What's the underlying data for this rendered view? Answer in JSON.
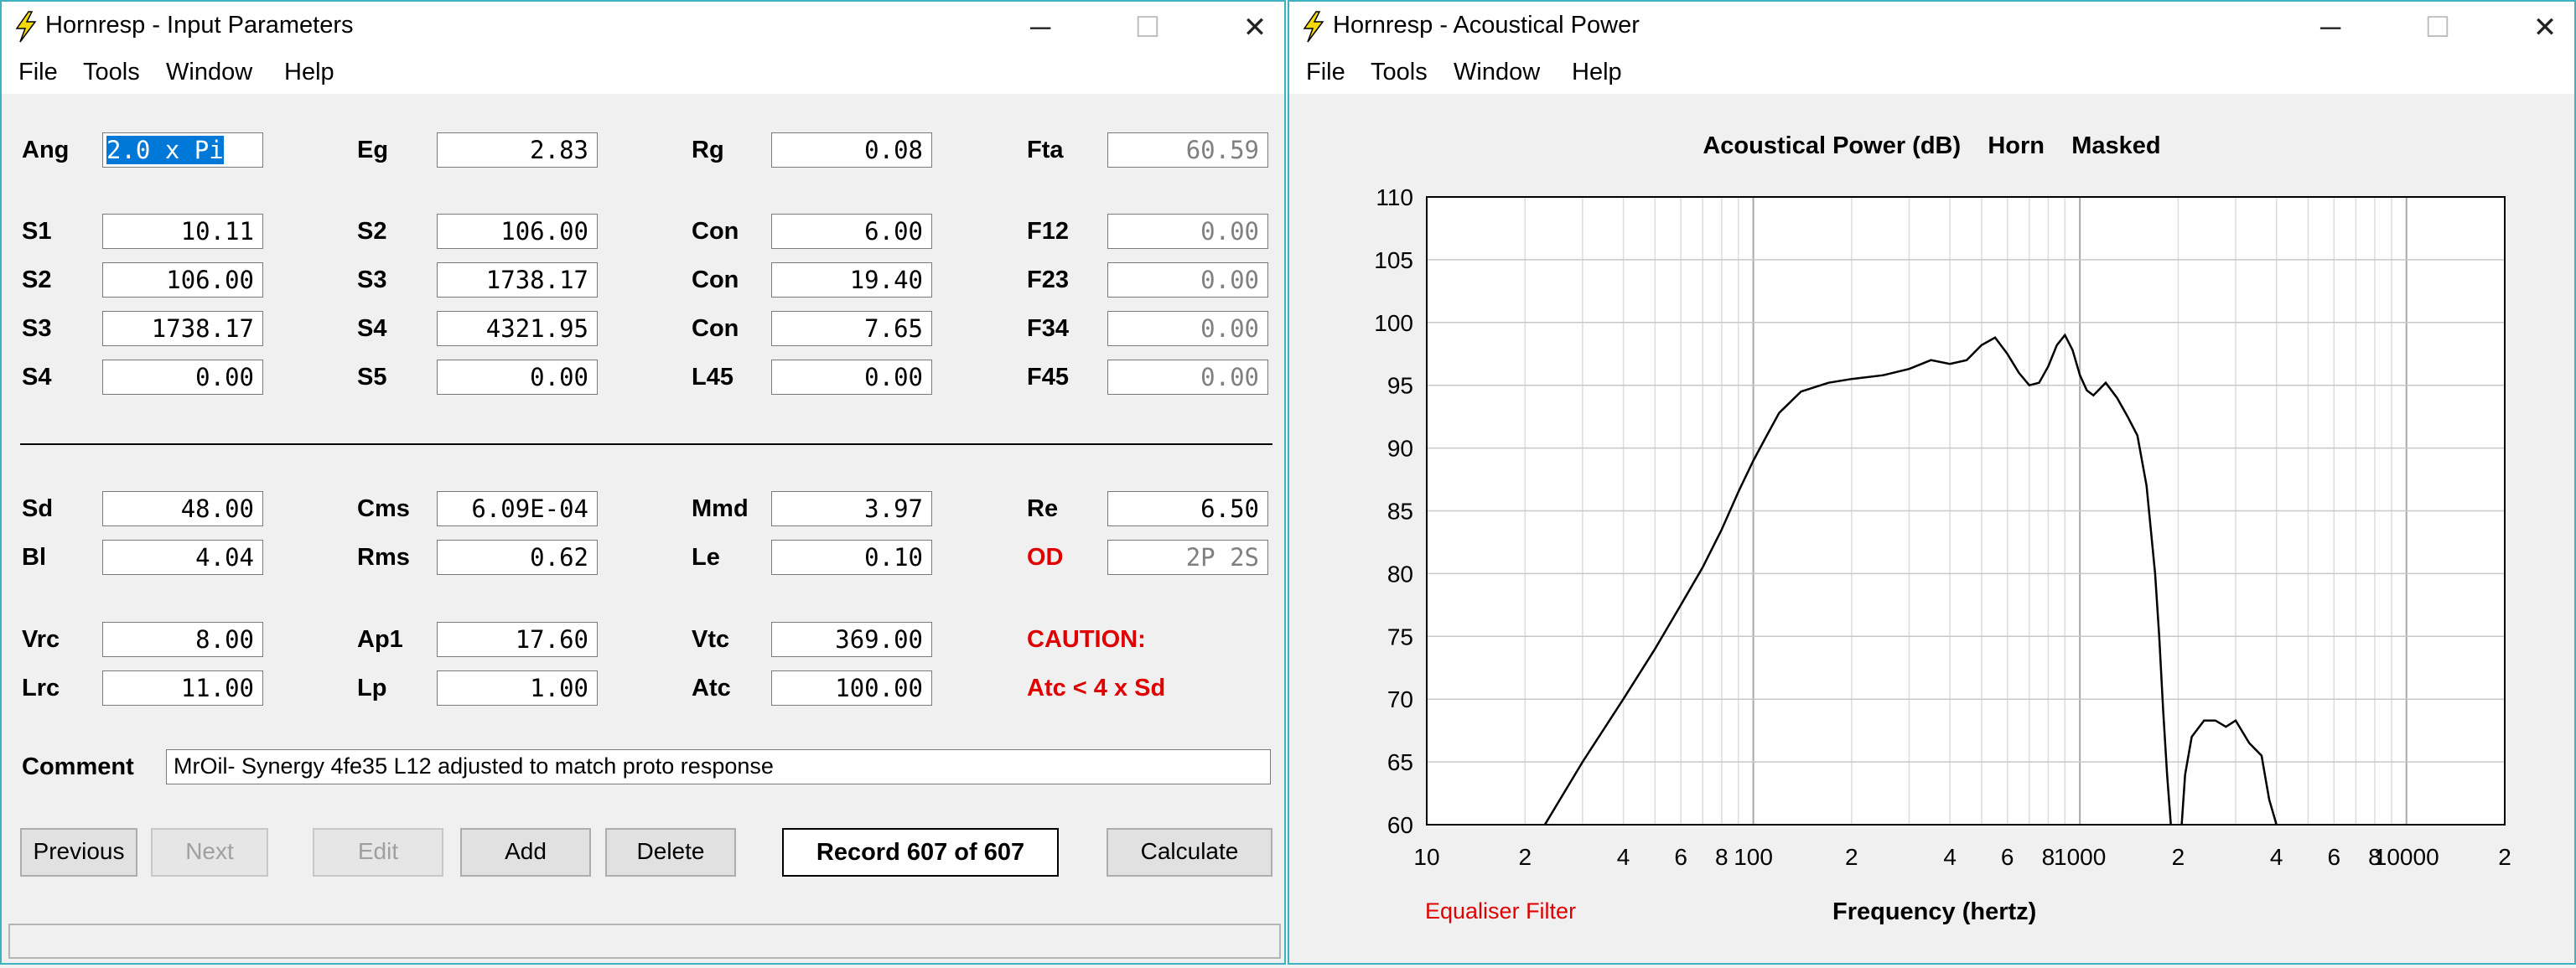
{
  "input_window": {
    "title": "Hornresp - Input Parameters",
    "menu": [
      "File",
      "Tools",
      "Window",
      "Help"
    ],
    "rows": [
      [
        [
          "Ang",
          "2.0 x Pi"
        ],
        [
          "Eg",
          "2.83"
        ],
        [
          "Rg",
          "0.08"
        ],
        [
          "Fta",
          "60.59"
        ]
      ],
      [
        [
          "S1",
          "10.11"
        ],
        [
          "S2",
          "106.00"
        ],
        [
          "Con",
          "6.00"
        ],
        [
          "F12",
          "0.00"
        ]
      ],
      [
        [
          "S2",
          "106.00"
        ],
        [
          "S3",
          "1738.17"
        ],
        [
          "Con",
          "19.40"
        ],
        [
          "F23",
          "0.00"
        ]
      ],
      [
        [
          "S3",
          "1738.17"
        ],
        [
          "S4",
          "4321.95"
        ],
        [
          "Con",
          "7.65"
        ],
        [
          "F34",
          "0.00"
        ]
      ],
      [
        [
          "S4",
          "0.00"
        ],
        [
          "S5",
          "0.00"
        ],
        [
          "L45",
          "0.00"
        ],
        [
          "F45",
          "0.00"
        ]
      ],
      [
        [
          "Sd",
          "48.00"
        ],
        [
          "Cms",
          "6.09E-04"
        ],
        [
          "Mmd",
          "3.97"
        ],
        [
          "Re",
          "6.50"
        ]
      ],
      [
        [
          "Bl",
          "4.04"
        ],
        [
          "Rms",
          "0.62"
        ],
        [
          "Le",
          "0.10"
        ],
        [
          "OD",
          "2P 2S"
        ]
      ],
      [
        [
          "Vrc",
          "8.00"
        ],
        [
          "Ap1",
          "17.60"
        ],
        [
          "Vtc",
          "369.00"
        ]
      ],
      [
        [
          "Lrc",
          "11.00"
        ],
        [
          "Lp",
          "1.00"
        ],
        [
          "Atc",
          "100.00"
        ]
      ]
    ],
    "caution": "CAUTION:",
    "caution_detail": "Atc < 4 x Sd",
    "comment_label": "Comment",
    "comment": "MrOil- Synergy 4fe35  L12 adjusted to match proto response",
    "buttons": [
      "Previous",
      "Next",
      "Edit",
      "Add",
      "Delete",
      "Calculate"
    ],
    "record": "Record 607 of 607"
  },
  "power_window": {
    "title": "Hornresp - Acoustical Power",
    "menu": [
      "File",
      "Tools",
      "Window",
      "Help"
    ],
    "equaliser_label": "Equaliser Filter"
  },
  "chart_data": {
    "type": "line",
    "title": "Acoustical Power (dB)    Horn    Masked",
    "xlabel": "Frequency (hertz)",
    "ylabel": "",
    "x_scale": "log",
    "xlim": [
      10,
      20000
    ],
    "ylim": [
      60,
      110
    ],
    "x_tick_labels": [
      "10",
      "2",
      "4",
      "6",
      "8",
      "100",
      "2",
      "4",
      "6",
      "8",
      "1000",
      "2",
      "4",
      "6",
      "8",
      "10000",
      "2"
    ],
    "y_ticks": [
      60,
      65,
      70,
      75,
      80,
      85,
      90,
      95,
      100,
      105,
      110
    ],
    "grid": true,
    "series": [
      {
        "x": [
          23,
          30,
          40,
          50,
          60,
          70,
          80,
          90,
          100,
          110,
          120,
          140,
          170,
          200,
          250,
          300,
          350,
          400,
          450,
          500,
          550,
          600,
          650,
          700,
          750,
          800,
          850,
          900,
          950,
          1000,
          1050,
          1100,
          1200,
          1300,
          1400,
          1500,
          1600,
          1700,
          1750,
          1800,
          1850,
          1900,
          1950,
          2000
        ],
        "y": [
          60,
          65,
          70,
          74,
          77.5,
          80.5,
          83.5,
          86.5,
          89,
          91,
          92.8,
          94.5,
          95.2,
          95.5,
          95.8,
          96.3,
          97,
          96.7,
          97,
          98.2,
          98.8,
          97.5,
          96,
          95,
          95.2,
          96.5,
          98.2,
          99,
          97.8,
          95.8,
          94.6,
          94.2,
          95.2,
          94,
          92.5,
          91,
          87,
          80,
          75,
          69,
          64,
          60,
          58,
          57
        ]
      },
      {
        "x": [
          2000,
          2050,
          2100,
          2200,
          2400,
          2600,
          2800,
          3000,
          3300,
          3600,
          3800,
          4000
        ],
        "y": [
          57,
          60,
          64,
          67,
          68.3,
          68.3,
          67.8,
          68.3,
          66.5,
          65.5,
          62,
          60
        ]
      }
    ]
  }
}
